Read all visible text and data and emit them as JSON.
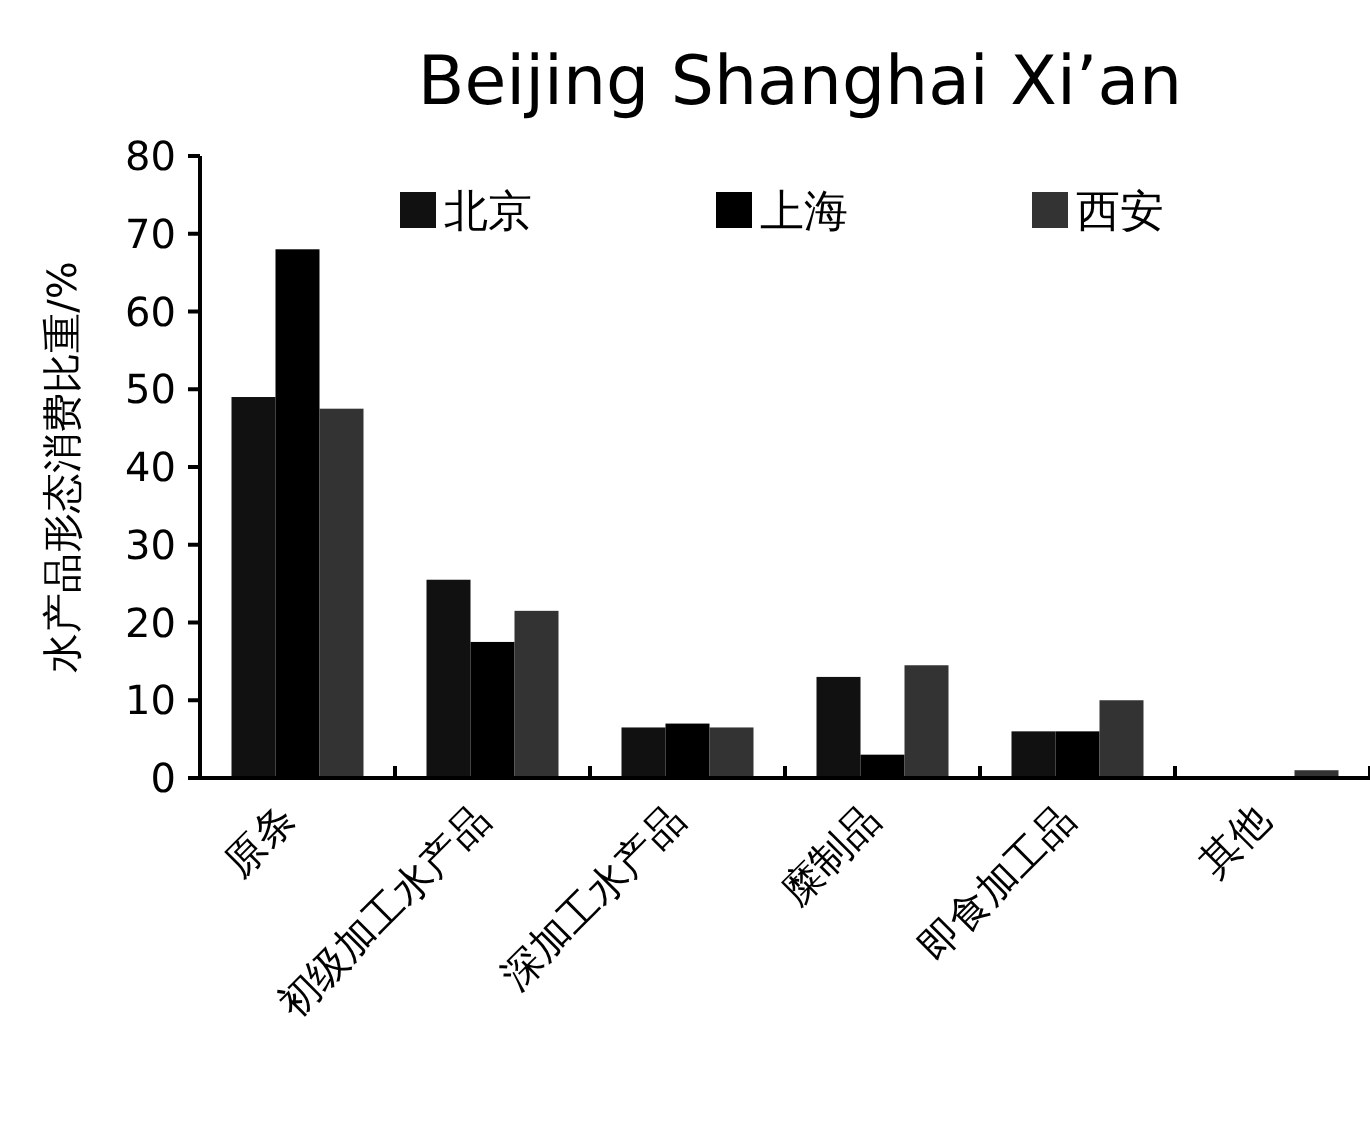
{
  "chart_data": {
    "type": "bar",
    "title": "Beijing   Shanghai   Xi’an",
    "ylabel": "水产品形态消费比重/%",
    "categories": [
      "原条",
      "初级加工水产品",
      "深加工水产品",
      "糜制品",
      "即食加工品",
      "其他"
    ],
    "series": [
      {
        "name": "北京",
        "color": "#111111",
        "values": [
          49,
          25.5,
          6.5,
          13,
          6,
          0
        ]
      },
      {
        "name": "上海",
        "color": "#000000",
        "values": [
          68,
          17.5,
          7,
          3,
          6,
          0
        ]
      },
      {
        "name": "西安",
        "color": "#333333",
        "values": [
          47.5,
          21.5,
          6.5,
          14.5,
          10,
          1
        ]
      }
    ],
    "ylim": [
      0,
      80
    ],
    "yticks": [
      0,
      10,
      20,
      30,
      40,
      50,
      60,
      70,
      80
    ],
    "legend": "top",
    "grid": false
  }
}
